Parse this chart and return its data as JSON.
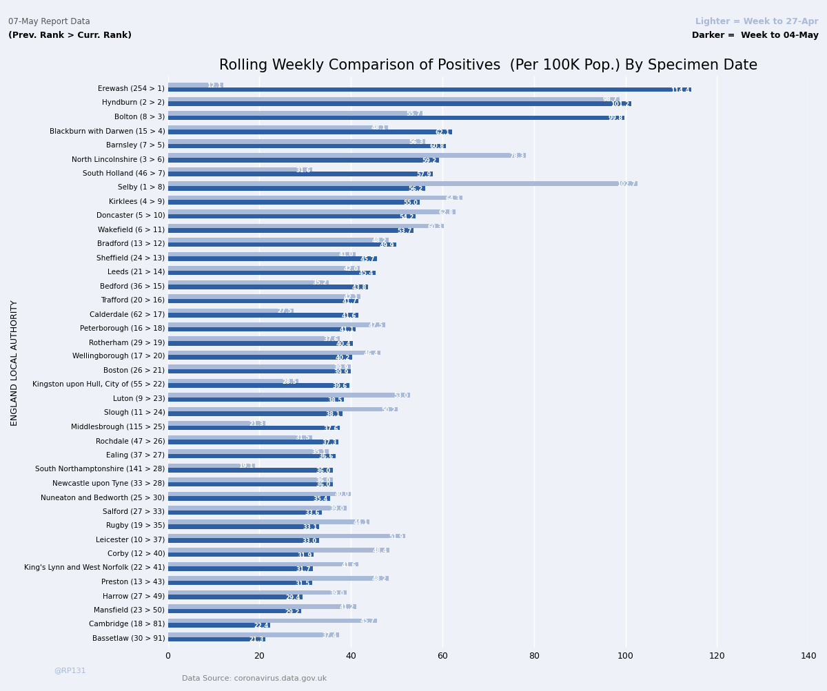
{
  "title": "Rolling Weekly Comparison of Positives  (Per 100K Pop.) By Specimen Date",
  "subtitle_left": "07-May Report Data",
  "subtitle_rank": "(Prev. Rank > Curr. Rank)",
  "legend_light": "Lighter = Week to 27-Apr",
  "legend_dark": "Darker =  Week to 04-May",
  "ylabel": "ENGLAND LOCAL AUTHORITY",
  "xlabel_note": "Data Source: coronavirus.data.gov.uk",
  "watermark": "@RP131",
  "xlim": [
    0,
    140
  ],
  "xticks": [
    0,
    20,
    40,
    60,
    80,
    100,
    120,
    140
  ],
  "bar_color_dark": "#2E5FA3",
  "bar_color_light": "#A8BAD8",
  "bg_color": "#EEF2F8",
  "grid_color": "#FFFFFF",
  "categories": [
    "Erewash (254 > 1)",
    "Hyndburn (2 > 2)",
    "Bolton (8 > 3)",
    "Blackburn with Darwen (15 > 4)",
    "Barnsley (7 > 5)",
    "North Lincolnshire (3 > 6)",
    "South Holland (46 > 7)",
    "Selby (1 > 8)",
    "Kirklees (4 > 9)",
    "Doncaster (5 > 10)",
    "Wakefield (6 > 11)",
    "Bradford (13 > 12)",
    "Sheffield (24 > 13)",
    "Leeds (21 > 14)",
    "Bedford (36 > 15)",
    "Trafford (20 > 16)",
    "Calderdale (62 > 17)",
    "Peterborough (16 > 18)",
    "Rotherham (29 > 19)",
    "Wellingborough (17 > 20)",
    "Boston (26 > 21)",
    "Kingston upon Hull, City of (55 > 22)",
    "Luton (9 > 23)",
    "Slough (11 > 24)",
    "Middlesbrough (115 > 25)",
    "Rochdale (47 > 26)",
    "Ealing (37 > 27)",
    "South Northamptonshire (141 > 28)",
    "Newcastle upon Tyne (33 > 28)",
    "Nuneaton and Bedworth (25 > 30)",
    "Salford (27 > 33)",
    "Rugby (19 > 35)",
    "Leicester (10 > 37)",
    "Corby (12 > 40)",
    "King's Lynn and West Norfolk (22 > 41)",
    "Preston (13 > 43)",
    "Harrow (27 > 49)",
    "Mansfield (23 > 50)",
    "Cambridge (18 > 81)",
    "Bassetlaw (30 > 91)"
  ],
  "dark_values": [
    114.4,
    101.2,
    99.8,
    62.1,
    60.8,
    59.2,
    57.9,
    56.2,
    55.0,
    54.2,
    53.7,
    49.9,
    45.7,
    45.4,
    43.8,
    41.7,
    41.6,
    41.1,
    40.4,
    40.2,
    39.9,
    39.6,
    38.5,
    38.1,
    37.6,
    37.3,
    36.6,
    36.0,
    36.0,
    35.4,
    33.6,
    33.1,
    33.0,
    31.9,
    31.7,
    31.5,
    29.4,
    29.2,
    22.4,
    21.3
  ],
  "light_values": [
    12.1,
    98.7,
    55.7,
    48.1,
    56.3,
    78.3,
    31.6,
    102.7,
    64.3,
    62.8,
    60.3,
    48.2,
    41.0,
    42.0,
    35.2,
    42.1,
    27.5,
    47.5,
    37.6,
    46.4,
    39.9,
    28.5,
    53.0,
    50.2,
    21.3,
    31.5,
    35.1,
    19.1,
    36.0,
    40.0,
    39.0,
    44.1,
    51.9,
    48.4,
    41.6,
    48.2,
    39.0,
    41.2,
    45.7,
    37.4
  ]
}
